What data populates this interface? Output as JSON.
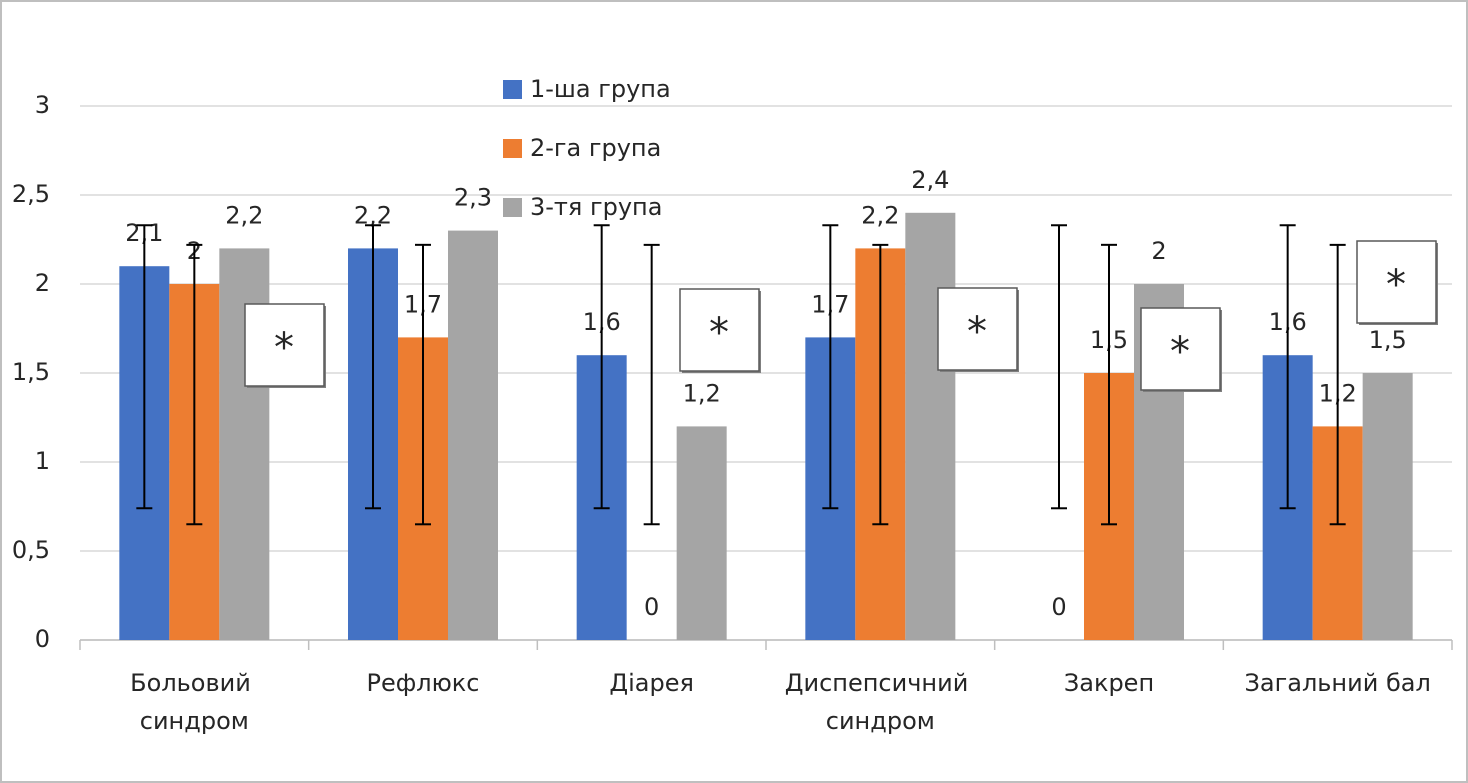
{
  "chart_data": {
    "type": "bar",
    "categories": [
      "Больовий синдром",
      "Рефлюкс",
      "Діарея",
      "Диспепсичний синдром",
      "Закреп",
      "Загальний бал"
    ],
    "series": [
      {
        "name": "1-ша група",
        "color": "#4472c4",
        "values": [
          2.1,
          2.2,
          1.6,
          1.7,
          0,
          1.6
        ],
        "value_labels": [
          "2,1",
          "2,2",
          "1,6",
          "1,7",
          "0",
          "1,6"
        ],
        "error_low": [
          0.74,
          0.74,
          0.74,
          0.74,
          0.74,
          0.74
        ],
        "error_high": [
          2.33,
          2.33,
          2.33,
          2.33,
          2.33,
          2.33
        ]
      },
      {
        "name": "2-га група",
        "color": "#ed7d31",
        "values": [
          2,
          1.7,
          0,
          2.2,
          1.5,
          1.2
        ],
        "value_labels": [
          "2",
          "1,7",
          "0",
          "2,2",
          "1,5",
          "1,2"
        ],
        "error_low": [
          0.65,
          0.65,
          0.65,
          0.65,
          0.65,
          0.65
        ],
        "error_high": [
          2.22,
          2.22,
          2.22,
          2.22,
          2.22,
          2.22
        ]
      },
      {
        "name": "3-тя група",
        "color": "#a5a5a5",
        "values": [
          2.2,
          2.3,
          1.2,
          2.4,
          2,
          1.5
        ],
        "value_labels": [
          "2,2",
          "2,3",
          "1,2",
          "2,4",
          "2",
          "1,5"
        ]
      }
    ],
    "significance": [
      "*",
      null,
      "*",
      "*",
      "*",
      "*"
    ],
    "ylim": [
      0,
      3
    ],
    "yticks": [
      0,
      {
        "value": 0.5,
        "label": "0,5"
      },
      1,
      {
        "value": 1.5,
        "label": "1,5"
      },
      2,
      {
        "value": 2.5,
        "label": "2,5"
      },
      3
    ],
    "grid": true,
    "legend": "top"
  }
}
